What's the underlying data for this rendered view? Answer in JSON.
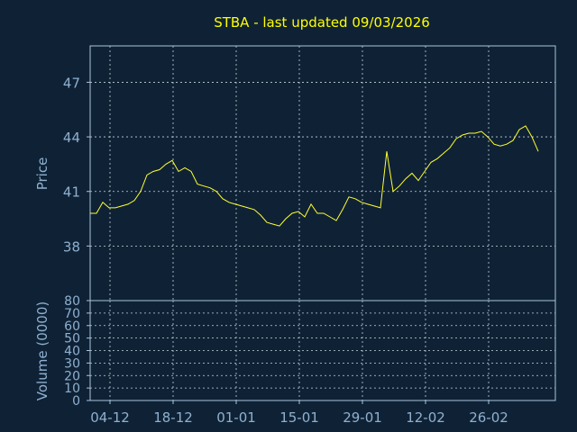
{
  "title": "STBA - last updated 09/03/2026",
  "colors": {
    "background": "#0f2235",
    "frame": "#a9c4dc",
    "grid": "#c8d3de",
    "axis_text": "#8fb0d0",
    "title": "#ffff00",
    "price_line": "#ffff33",
    "volume_up": "#22dd22",
    "volume_down": "#dd2222"
  },
  "chart_data": [
    {
      "type": "line",
      "ylabel": "Price",
      "ylim": [
        35,
        49
      ],
      "yticks": [
        "38",
        "41",
        "44",
        "47"
      ],
      "x_tick_labels": [
        "04-12",
        "18-12",
        "01-01",
        "15-01",
        "29-01",
        "12-02",
        "26-02"
      ],
      "x_tick_index": [
        1,
        11,
        21,
        31,
        41,
        51,
        61
      ],
      "grid": true,
      "n_days": 72,
      "values": [
        39.8,
        39.8,
        40.4,
        40.1,
        40.1,
        40.2,
        40.3,
        40.5,
        41.0,
        41.9,
        42.1,
        42.2,
        42.5,
        42.7,
        42.1,
        42.3,
        42.1,
        41.4,
        41.3,
        41.2,
        41.0,
        40.6,
        40.4,
        40.3,
        40.2,
        40.1,
        40.0,
        39.7,
        39.3,
        39.2,
        39.1,
        39.5,
        39.8,
        39.9,
        39.6,
        40.3,
        39.8,
        39.8,
        39.6,
        39.4,
        40.0,
        40.7,
        40.6,
        40.4,
        40.3,
        40.2,
        40.1,
        43.2,
        41.0,
        41.3,
        41.7,
        42.0,
        41.6,
        42.1,
        42.6,
        42.8,
        43.1,
        43.4,
        43.9,
        44.1,
        44.2,
        44.2,
        44.3,
        44.0,
        43.6,
        43.5,
        43.6,
        43.8,
        44.4,
        44.6,
        44.0,
        43.2
      ],
      "values_tail_note": ""
    },
    {
      "type": "bar",
      "ylabel": "Volume (0000)",
      "ylim": [
        0,
        80
      ],
      "yticks": [
        "0",
        "10",
        "20",
        "30",
        "40",
        "50",
        "60",
        "70",
        "80"
      ],
      "grid": true
    }
  ]
}
